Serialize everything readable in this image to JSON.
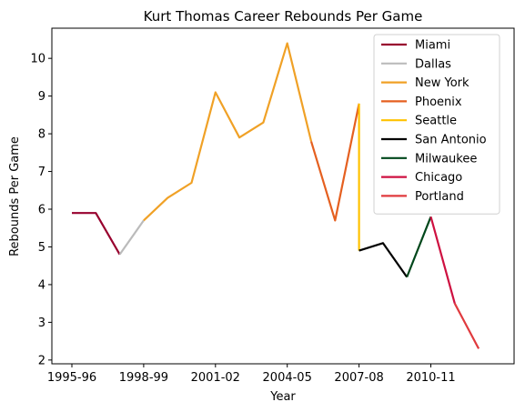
{
  "chart_data": {
    "type": "line",
    "title": "Kurt Thomas  Career Rebounds Per Game",
    "xlabel": "Year",
    "ylabel": "Rebounds Per Game",
    "x_categories": [
      "1995-96",
      "1996-97",
      "1997-98",
      "1998-99",
      "1999-00",
      "2000-01",
      "2001-02",
      "2002-03",
      "2003-04",
      "2004-05",
      "2005-06",
      "2006-07",
      "2007-08",
      "2008-09",
      "2009-10",
      "2010-11",
      "2011-12",
      "2012-13"
    ],
    "x_tick_labels": [
      "1995-96",
      "1998-99",
      "2001-02",
      "2004-05",
      "2007-08",
      "2010-11"
    ],
    "y_ticks": [
      2,
      3,
      4,
      5,
      6,
      7,
      8,
      9,
      10
    ],
    "ylim": [
      1.9,
      10.8
    ],
    "grid": false,
    "legend_position": "top-right",
    "series": [
      {
        "name": "Miami",
        "color": "#98002E",
        "points": [
          [
            "1995-96",
            5.9
          ],
          [
            "1996-97",
            5.9
          ],
          [
            "1997-98",
            4.8
          ]
        ]
      },
      {
        "name": "Dallas",
        "color": "#BBBBBB",
        "points": [
          [
            "1997-98",
            4.8
          ],
          [
            "1998-99",
            5.7
          ]
        ]
      },
      {
        "name": "New York",
        "color": "#F0A126",
        "points": [
          [
            "1998-99",
            5.7
          ],
          [
            "1999-00",
            6.3
          ],
          [
            "2000-01",
            6.7
          ],
          [
            "2001-02",
            9.1
          ],
          [
            "2002-03",
            7.9
          ],
          [
            "2003-04",
            8.3
          ],
          [
            "2004-05",
            10.4
          ],
          [
            "2005-06",
            7.8
          ]
        ]
      },
      {
        "name": "Phoenix",
        "color": "#E56020",
        "points": [
          [
            "2005-06",
            7.8
          ],
          [
            "2006-07",
            5.7
          ],
          [
            "2007-08",
            8.8
          ]
        ]
      },
      {
        "name": "Seattle",
        "color": "#FFC200",
        "points": [
          [
            "2007-08",
            8.8
          ],
          [
            "2007-08",
            4.9
          ]
        ]
      },
      {
        "name": "San Antonio",
        "color": "#000000",
        "points": [
          [
            "2007-08",
            4.9
          ],
          [
            "2008-09",
            5.1
          ],
          [
            "2009-10",
            4.2
          ]
        ]
      },
      {
        "name": "Milwaukee",
        "color": "#00471B",
        "points": [
          [
            "2009-10",
            4.2
          ],
          [
            "2010-11",
            5.8
          ]
        ]
      },
      {
        "name": "Chicago",
        "color": "#CE1141",
        "points": [
          [
            "2010-11",
            5.8
          ],
          [
            "2011-12",
            3.5
          ]
        ]
      },
      {
        "name": "Portland",
        "color": "#E03A3E",
        "points": [
          [
            "2011-12",
            3.5
          ],
          [
            "2012-13",
            2.3
          ]
        ]
      }
    ]
  }
}
